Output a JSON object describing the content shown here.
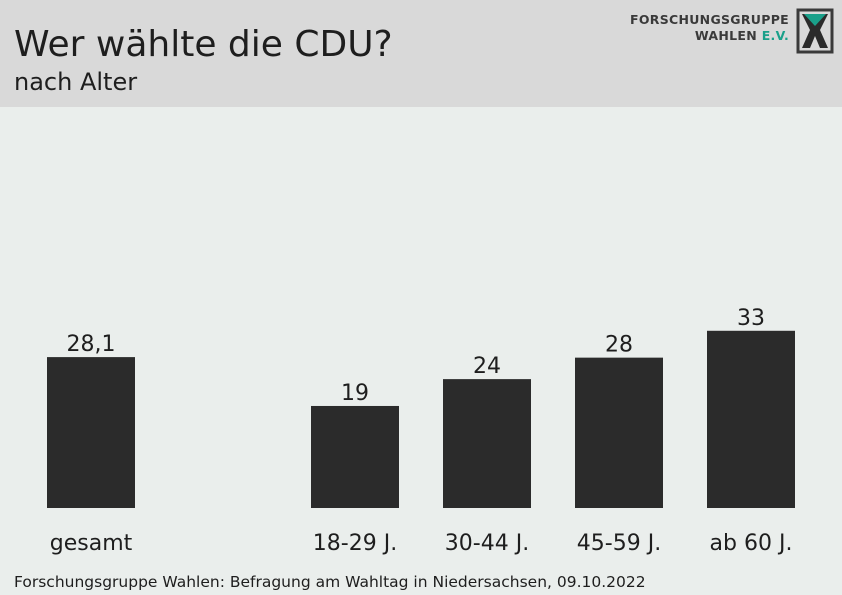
{
  "header": {
    "title": "Wer wählte die CDU?",
    "subtitle": "nach Alter",
    "logo_line1": "FORSCHUNGSGRUPPE",
    "logo_line2": "WAHLEN",
    "logo_ev": "E.V."
  },
  "colors": {
    "bar": "#2b2b2b",
    "background": "#eaeeec",
    "header": "#d9d9d9",
    "logo_accent": "#1aa08a"
  },
  "chart_data": {
    "type": "bar",
    "categories": [
      "gesamt",
      "18-29 J.",
      "30-44 J.",
      "45-59 J.",
      "ab 60 J."
    ],
    "values": [
      28.1,
      19,
      24,
      28,
      33
    ],
    "value_labels": [
      "28,1",
      "19",
      "24",
      "28",
      "33"
    ],
    "title": "Wer wählte die CDU?",
    "subtitle": "nach Alter",
    "xlabel": "",
    "ylabel": "",
    "ylim": [
      0,
      35
    ],
    "grid": false,
    "legend": "none"
  },
  "footer": {
    "source": "Forschungsgruppe Wahlen: Befragung am Wahltag in Niedersachsen, 09.10.2022"
  }
}
